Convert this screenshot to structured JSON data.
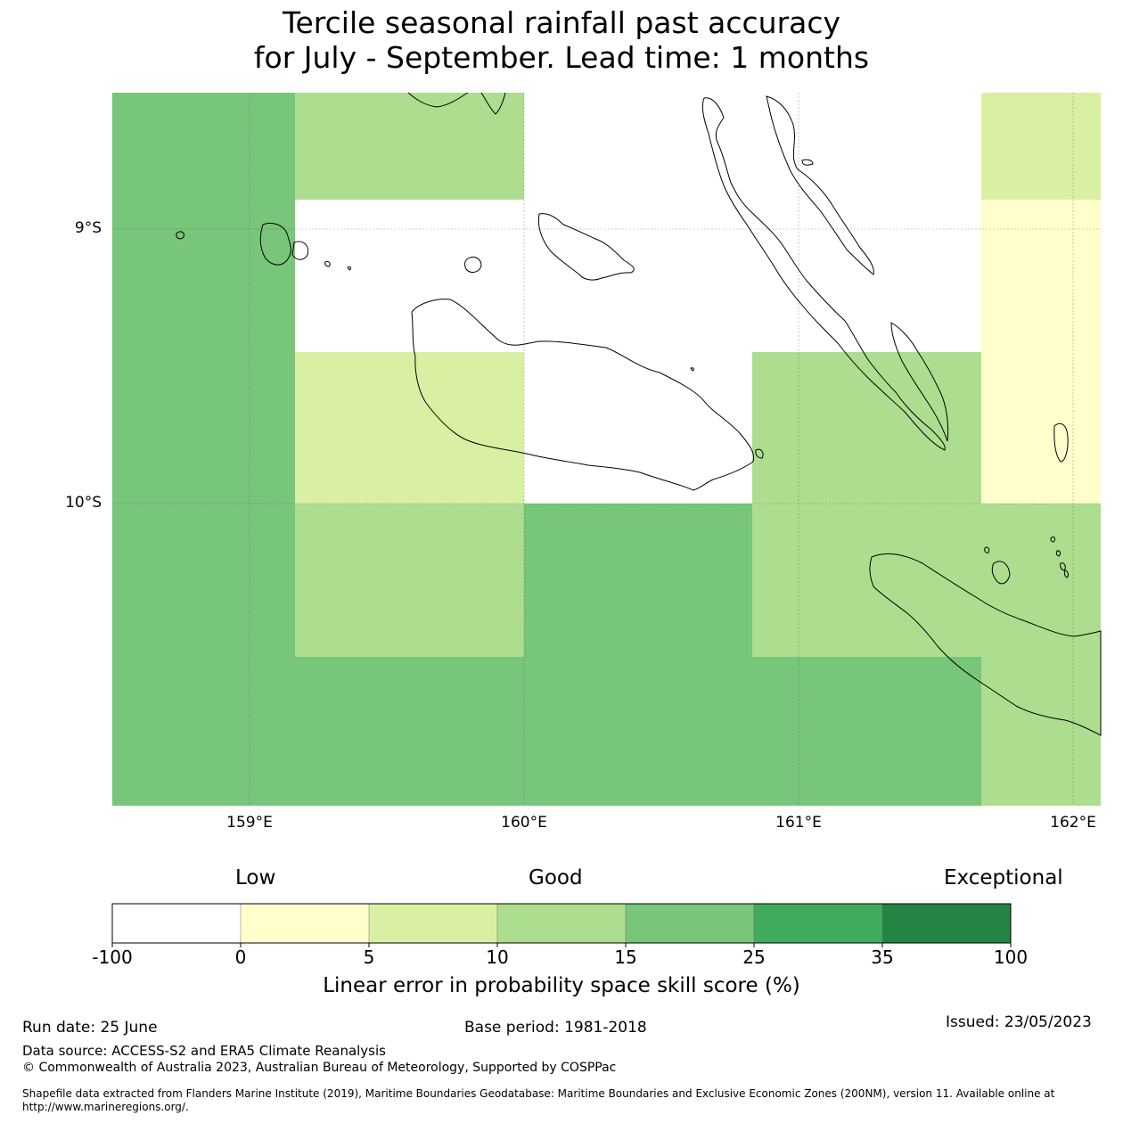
{
  "title": {
    "line1": "Tercile seasonal rainfall past accuracy",
    "line2": "for July - September. Lead time: 1 months"
  },
  "map": {
    "lat_labels": [
      "9°S",
      "10°S"
    ],
    "lon_labels": [
      "159°E",
      "160°E",
      "161°E",
      "162°E"
    ],
    "colors": {
      "white": "#ffffff",
      "light_yellow": "#ffffcc",
      "pale_yellow_green": "#d9f0a3",
      "light_green": "#addd8e",
      "medium_green": "#78c679",
      "green": "#41ab5d",
      "dark_green": "#238443"
    }
  },
  "colorbar": {
    "categories": [
      "Low",
      "Good",
      "Exceptional"
    ],
    "ticks": [
      "-100",
      "0",
      "5",
      "10",
      "15",
      "25",
      "35",
      "100"
    ],
    "colors": [
      "#ffffff",
      "#ffffcc",
      "#d9f0a3",
      "#addd8e",
      "#78c679",
      "#41ab5d",
      "#238443"
    ],
    "label": "Linear error in probability space skill score (%)"
  },
  "footer": {
    "run_date": "Run date: 25 June",
    "base_period": "Base period: 1981-2018",
    "issued": "Issued: 23/05/2023",
    "data_source": "Data source: ACCESS-S2 and ERA5 Climate Reanalysis",
    "copyright": "© Commonwealth of Australia 2023, Australian Bureau of Meteorology, Supported by COSPPac",
    "shapefile_line1": "Shapefile data extracted from Flanders Marine Institute (2019), Maritime Boundaries Geodatabase: Maritime Boundaries and Exclusive Economic Zones (200NM), version 11. Available online at",
    "shapefile_line2": "http://www.marineregions.org/."
  }
}
